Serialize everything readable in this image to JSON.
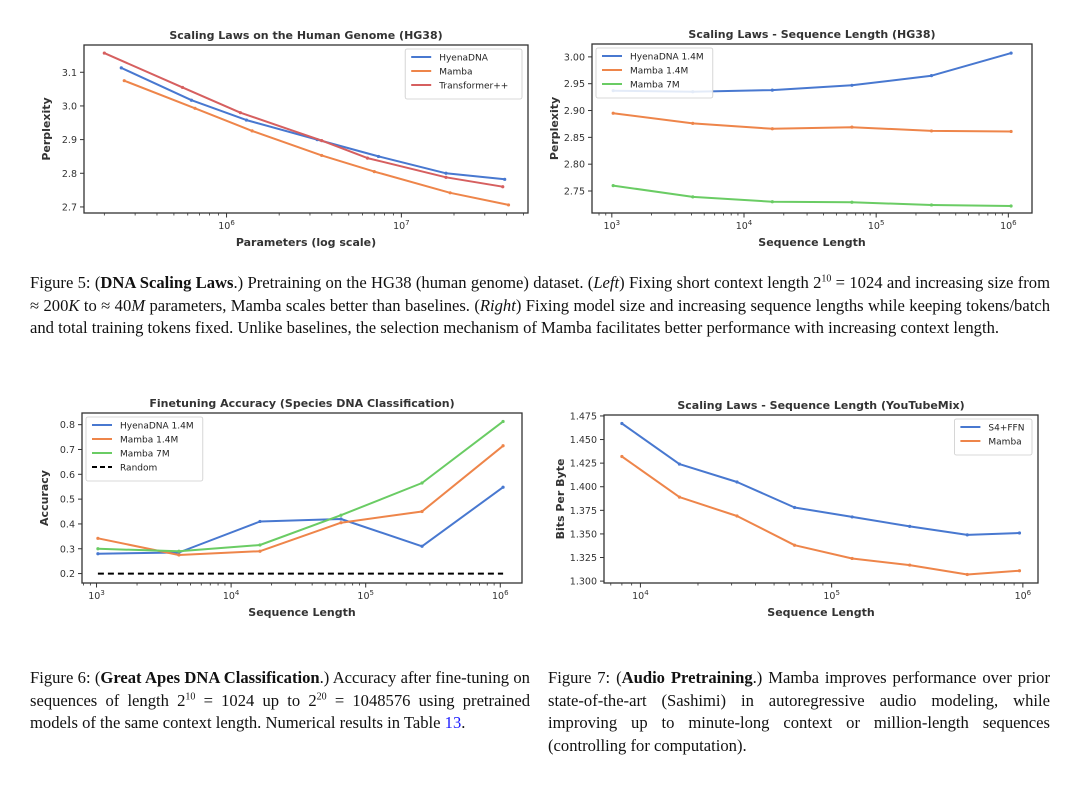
{
  "chart_data": [
    {
      "type": "line",
      "title": "Scaling Laws on the Human Genome (HG38)",
      "xlabel": "Parameters (log scale)",
      "ylabel": "Perplexity",
      "xscale": "log",
      "xlim": [
        153000,
        53000000
      ],
      "ylim": [
        2.682,
        3.181
      ],
      "yticks": [
        "2.7",
        "2.8",
        "2.9",
        "3.0",
        "3.1"
      ],
      "xticks": [
        {
          "value": 1000000,
          "base": "10",
          "exp": "6"
        },
        {
          "value": 10000000,
          "base": "10",
          "exp": "7"
        }
      ],
      "legend": "top-right",
      "series": [
        {
          "name": "HyenaDNA",
          "color": "#4878d0",
          "x": [
            250000,
            630000,
            1300000,
            3300000,
            7400000,
            18000000,
            39000000
          ],
          "y": [
            3.113,
            3.017,
            2.958,
            2.9,
            2.85,
            2.8,
            2.782
          ]
        },
        {
          "name": "Mamba",
          "color": "#ee854a",
          "x": [
            260000,
            660000,
            1400000,
            3500000,
            7000000,
            19000000,
            41000000
          ],
          "y": [
            3.075,
            2.993,
            2.926,
            2.853,
            2.805,
            2.742,
            2.706
          ]
        },
        {
          "name": "Transformer++",
          "color": "#d65f5f",
          "x": [
            200000,
            560000,
            1200000,
            3500000,
            6400000,
            18000000,
            38000000
          ],
          "y": [
            3.157,
            3.055,
            2.98,
            2.897,
            2.845,
            2.788,
            2.76
          ]
        }
      ]
    },
    {
      "type": "line",
      "title": "Scaling Laws - Sequence Length (HG38)",
      "xlabel": "Sequence Length",
      "ylabel": "Perplexity",
      "xscale": "log",
      "xlim": [
        708,
        1510000
      ],
      "ylim": [
        2.709,
        3.024
      ],
      "yticks": [
        "2.75",
        "2.80",
        "2.85",
        "2.90",
        "2.95",
        "3.00"
      ],
      "xticks": [
        {
          "value": 1000,
          "base": "10",
          "exp": "3"
        },
        {
          "value": 10000,
          "base": "10",
          "exp": "4"
        },
        {
          "value": 100000,
          "base": "10",
          "exp": "5"
        },
        {
          "value": 1000000,
          "base": "10",
          "exp": "6"
        }
      ],
      "legend": "top-left",
      "series": [
        {
          "name": "HyenaDNA 1.4M",
          "color": "#4878d0",
          "x": [
            1024,
            4096,
            16384,
            65536,
            262144,
            1048576
          ],
          "y": [
            2.937,
            2.935,
            2.938,
            2.947,
            2.965,
            3.007
          ]
        },
        {
          "name": "Mamba 1.4M",
          "color": "#ee854a",
          "x": [
            1024,
            4096,
            16384,
            65536,
            262144,
            1048576
          ],
          "y": [
            2.895,
            2.876,
            2.866,
            2.869,
            2.862,
            2.861
          ]
        },
        {
          "name": "Mamba 7M",
          "color": "#6acc64",
          "x": [
            1024,
            4096,
            16384,
            65536,
            262144,
            1048576
          ],
          "y": [
            2.76,
            2.739,
            2.73,
            2.729,
            2.724,
            2.722
          ]
        }
      ]
    },
    {
      "type": "line",
      "title": "Finetuning Accuracy (Species DNA Classification)",
      "xlabel": "Sequence Length",
      "ylabel": "Accuracy",
      "xscale": "log",
      "xlim": [
        780,
        1450000
      ],
      "ylim": [
        0.162,
        0.847
      ],
      "yticks": [
        "0.2",
        "0.3",
        "0.4",
        "0.5",
        "0.6",
        "0.7",
        "0.8"
      ],
      "xticks": [
        {
          "value": 1000,
          "base": "10",
          "exp": "3"
        },
        {
          "value": 10000,
          "base": "10",
          "exp": "4"
        },
        {
          "value": 100000,
          "base": "10",
          "exp": "5"
        },
        {
          "value": 1000000,
          "base": "10",
          "exp": "6"
        }
      ],
      "legend": "top-left",
      "series": [
        {
          "name": "HyenaDNA 1.4M",
          "color": "#4878d0",
          "x": [
            1024,
            4096,
            16384,
            65536,
            262144,
            1048576
          ],
          "y": [
            0.28,
            0.285,
            0.41,
            0.42,
            0.31,
            0.548
          ]
        },
        {
          "name": "Mamba 1.4M",
          "color": "#ee854a",
          "x": [
            1024,
            4096,
            16384,
            65536,
            262144,
            1048576
          ],
          "y": [
            0.342,
            0.275,
            0.29,
            0.405,
            0.45,
            0.715
          ]
        },
        {
          "name": "Mamba 7M",
          "color": "#6acc64",
          "x": [
            1024,
            4096,
            16384,
            65536,
            262144,
            1048576
          ],
          "y": [
            0.3,
            0.29,
            0.315,
            0.435,
            0.565,
            0.813
          ]
        },
        {
          "name": "Random",
          "color": "#000000",
          "dashed": true,
          "x": [
            1024,
            1048576
          ],
          "y": [
            0.2,
            0.2
          ]
        }
      ]
    },
    {
      "type": "line",
      "title": "Scaling Laws - Sequence Length (YouTubeMix)",
      "xlabel": "Sequence Length",
      "ylabel": "Bits Per Byte",
      "xscale": "log",
      "xlim": [
        6450,
        1200000
      ],
      "ylim": [
        1.298,
        1.476
      ],
      "yticks": [
        "1.300",
        "1.325",
        "1.350",
        "1.375",
        "1.400",
        "1.425",
        "1.450",
        "1.475"
      ],
      "xticks": [
        {
          "value": 10000,
          "base": "10",
          "exp": "4"
        },
        {
          "value": 100000,
          "base": "10",
          "exp": "5"
        },
        {
          "value": 1000000,
          "base": "10",
          "exp": "6"
        }
      ],
      "legend": "top-right",
      "series": [
        {
          "name": "S4+FFN",
          "color": "#4878d0",
          "x": [
            8000,
            16000,
            32000,
            64000,
            128000,
            256000,
            512000,
            960000
          ],
          "y": [
            1.467,
            1.424,
            1.405,
            1.378,
            1.368,
            1.358,
            1.349,
            1.351
          ]
        },
        {
          "name": "Mamba",
          "color": "#ee854a",
          "x": [
            8000,
            16000,
            32000,
            64000,
            128000,
            256000,
            512000,
            960000
          ],
          "y": [
            1.432,
            1.389,
            1.369,
            1.338,
            1.324,
            1.317,
            1.307,
            1.311
          ]
        }
      ]
    }
  ],
  "captions": {
    "fig5": {
      "label": "Figure 5: (",
      "bold": "DNA Scaling Laws",
      "t1": ".) Pretraining on the HG38 (human genome) dataset. (",
      "i1": "Left",
      "t2": ") Fixing short context length 2",
      "sup1": "10",
      "t3": " = 1024 and increasing size from ≈ 200",
      "i2": "K",
      "t4": " to ≈ 40",
      "i3": "M",
      "t5": " parameters, Mamba scales better than baselines. (",
      "i4": "Right",
      "t6": ") Fixing model size and increasing sequence lengths while keeping tokens/batch and total training tokens fixed. Unlike baselines, the selection mechanism of Mamba facilitates better performance with increasing context length."
    },
    "fig6": {
      "label": "Figure 6: (",
      "bold": "Great Apes DNA Classification",
      "t1": ".) Accuracy after fine-tuning on sequences of length 2",
      "sup1": "10",
      "t2": " = 1024 up to 2",
      "sup2": "20",
      "t3": " = 1048576 using pretrained models of the same context length. Numerical results in Table ",
      "link": "13",
      "t4": "."
    },
    "fig7": {
      "label": "Figure 7: (",
      "bold": "Audio Pretraining",
      "t1": ".) Mamba improves performance over prior state-of-the-art (Sashimi) in autoregressive audio modeling, while improving up to minute-long context or million-length sequences (controlling for computation)."
    }
  }
}
